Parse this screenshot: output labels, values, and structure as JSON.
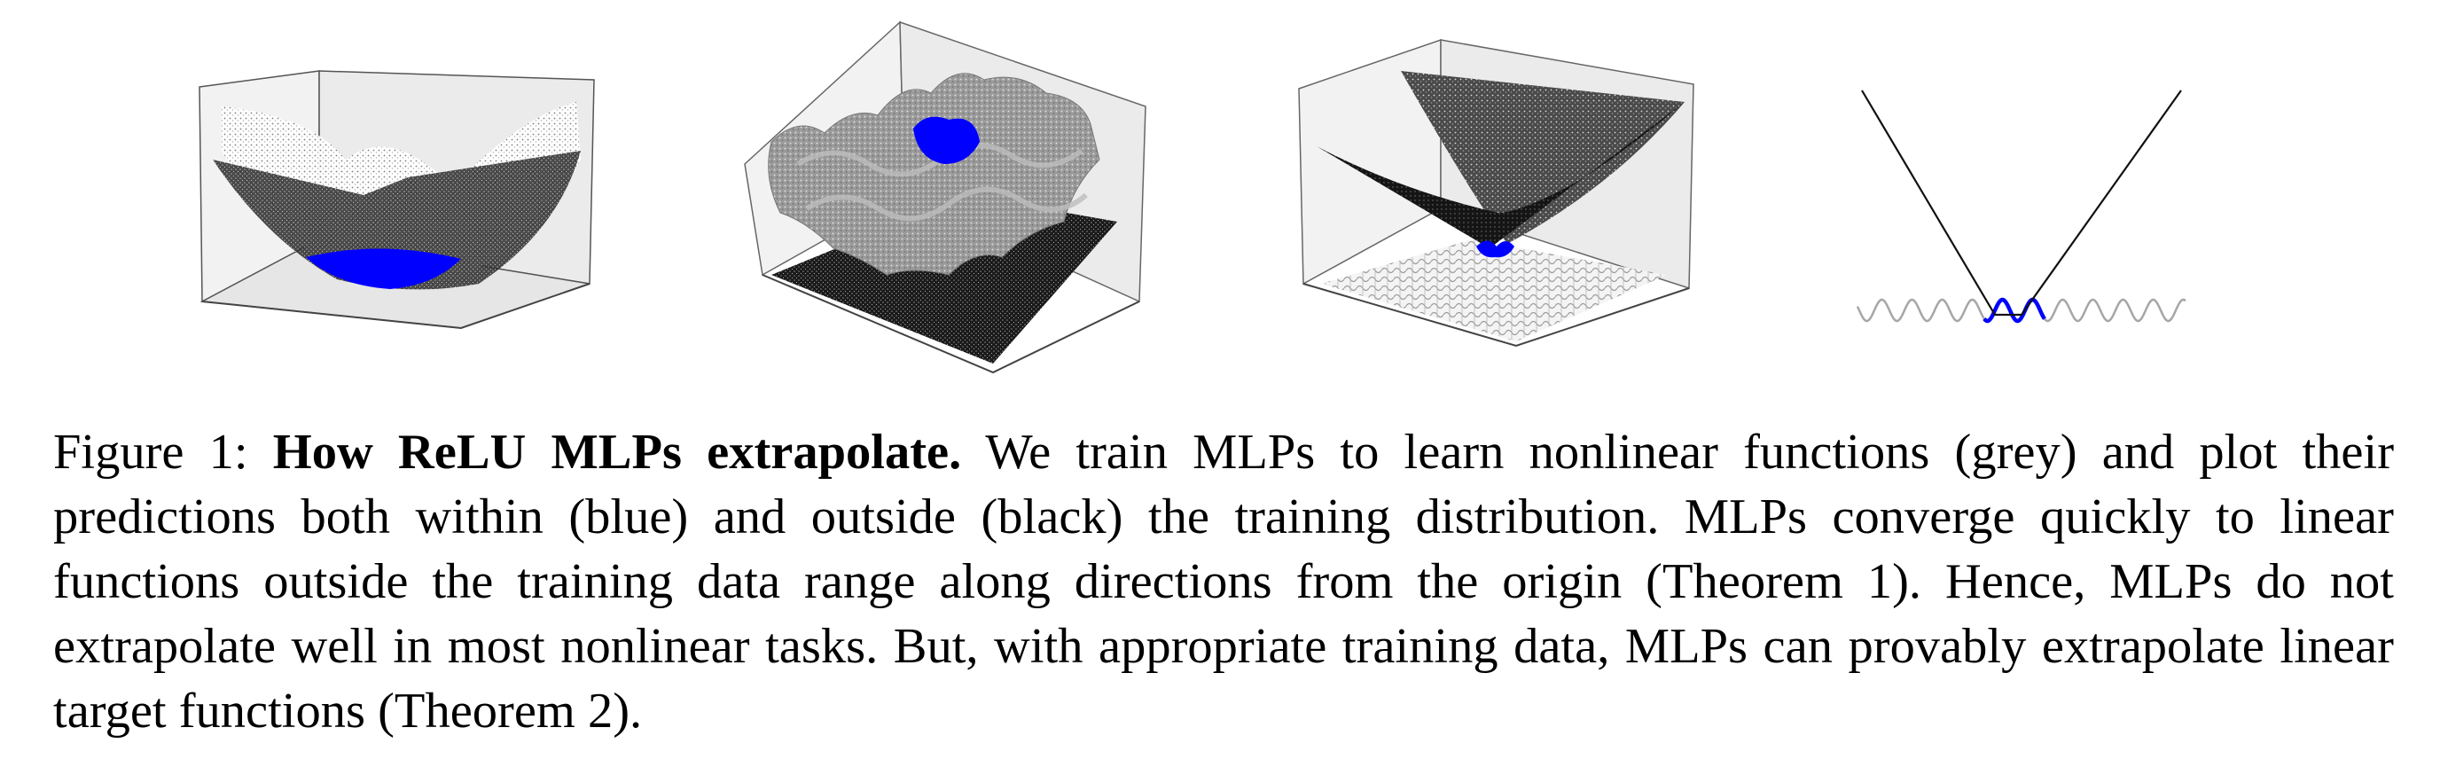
{
  "figure": {
    "label": "Figure 1:",
    "title": "How ReLU MLPs extrapolate.",
    "body": "We train MLPs to learn nonlinear functions (grey) and plot their predictions both within (blue) and outside (black) the training distribution. MLPs converge quickly to linear functions outside the training data range along directions from the origin (Theorem 1). Hence, MLPs do not extrapolate well in most nonlinear tasks. But, with appropriate training data, MLPs can provably extrapolate linear target functions (Theorem 2)."
  },
  "colors": {
    "target_function": "#a6a6a6",
    "prediction_in_distribution": "#0000ff",
    "prediction_out_of_distribution": "#111111",
    "axes_box": "#444444"
  },
  "panels": [
    {
      "kind": "3d-surface",
      "target": "quadratic bowl",
      "icon": "quadratic-surface"
    },
    {
      "kind": "3d-surface",
      "target": "wavy surface",
      "icon": "sinusoidal-surface"
    },
    {
      "kind": "3d-surface",
      "target": "absolute-value surface with wavy plane",
      "icon": "abs-surface"
    },
    {
      "kind": "2d-curve",
      "target": "sine wave",
      "icon": "sine-curve"
    }
  ]
}
